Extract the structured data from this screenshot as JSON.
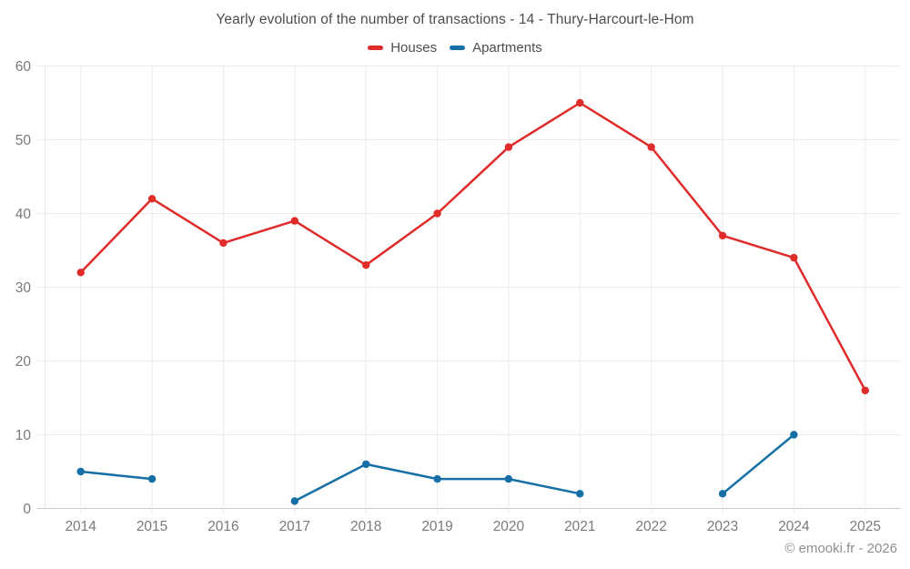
{
  "title": "Yearly evolution of the number of transactions - 14 - Thury-Harcourt-le-Hom",
  "legend": {
    "items": [
      {
        "label": "Houses",
        "color": "#e02b2b"
      },
      {
        "label": "Apartments",
        "color": "#1670a5"
      }
    ]
  },
  "footer": {
    "credit": "© emooki.fr - 2026"
  },
  "colors": {
    "grid": "#ececec",
    "axis_line": "#c9c9c9",
    "plot_border": "#e7e7e7",
    "tick_text": "#7a7a7a",
    "houses": "#e02b2b",
    "apartments": "#1670a5"
  },
  "chart_data": {
    "type": "line",
    "title": "Yearly evolution of the number of transactions - 14 - Thury-Harcourt-le-Hom",
    "categories": [
      "2014",
      "2015",
      "2016",
      "2017",
      "2018",
      "2019",
      "2020",
      "2021",
      "2022",
      "2023",
      "2024",
      "2025"
    ],
    "series": [
      {
        "name": "Houses",
        "color": "#e02b2b",
        "values": [
          32,
          42,
          36,
          39,
          33,
          40,
          49,
          55,
          49,
          37,
          34,
          16
        ]
      },
      {
        "name": "Apartments",
        "color": "#1670a5",
        "values": [
          5,
          4,
          null,
          1,
          6,
          4,
          4,
          2,
          null,
          2,
          10,
          null
        ]
      }
    ],
    "xlabel": "",
    "ylabel": "",
    "ylim": [
      0,
      60
    ],
    "yticks": [
      0,
      10,
      20,
      30,
      40,
      50,
      60
    ],
    "grid": true,
    "legend_position": "top-center",
    "gaps_note": "null values = years with no apartment data (line breaks)"
  }
}
